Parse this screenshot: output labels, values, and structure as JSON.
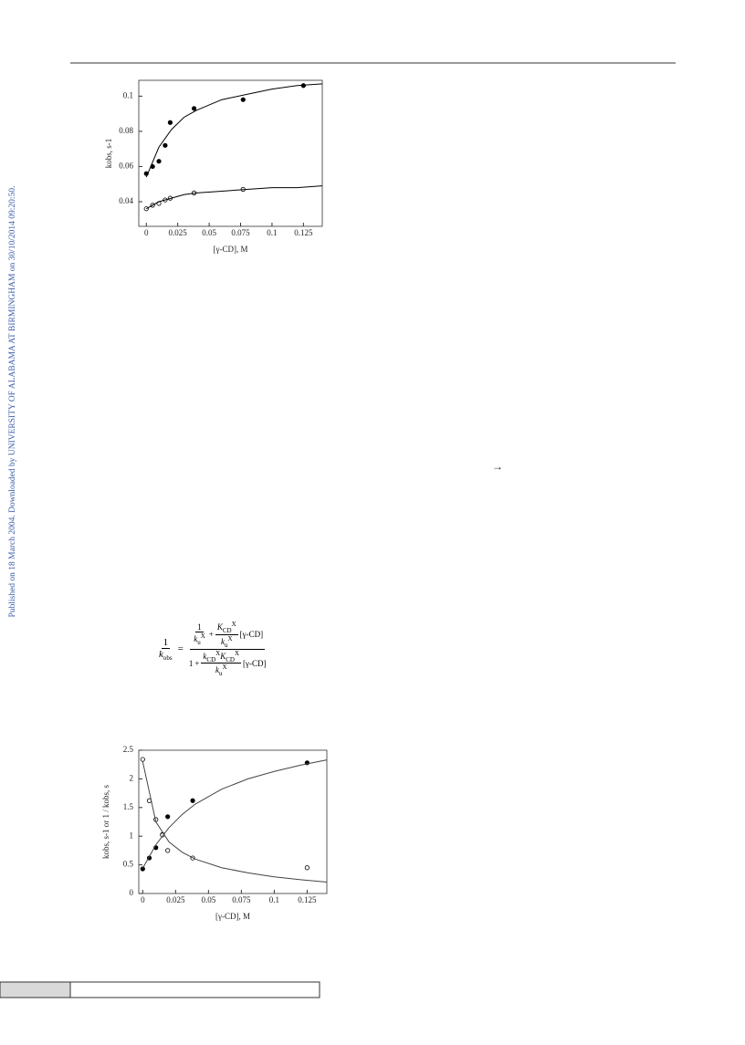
{
  "sidebar": "Published on 18 March 2004. Downloaded by UNIVERSITY OF ALABAMA AT BIRMINGHAM on 30/10/2014 09:20:50.",
  "arrow": "→",
  "equation": {
    "lhs_num": "1",
    "lhs_den": [
      "k",
      "obs"
    ],
    "equals": "=",
    "num": {
      "one": "1",
      "ku": [
        "k",
        "u",
        "X"
      ],
      "plus": "+",
      "K": [
        "K",
        "CD",
        "X"
      ],
      "ku2": [
        "k",
        "u",
        "X"
      ],
      "conc": "[γ-CD]"
    },
    "den": {
      "one": "1",
      "plus": "+",
      "k": [
        "k",
        "CD",
        "X"
      ],
      "K": [
        "K",
        "CD",
        "X"
      ],
      "ku": [
        "k",
        "u",
        "X"
      ],
      "conc": "[γ-CD]"
    }
  },
  "chart_data": [
    {
      "type": "scatter",
      "x_label": "[γ-CD], M",
      "y_label": "kobs, s-1",
      "xlim": [
        -0.006,
        0.14
      ],
      "xticks": [
        0,
        0.025,
        0.05,
        0.075,
        0.1,
        0.125
      ],
      "ylim": [
        0.026,
        0.109
      ],
      "yticks": [
        0.04,
        0.06,
        0.08,
        0.1
      ],
      "series": [
        {
          "marker": "filled",
          "color": "#000",
          "x": [
            0,
            0.005,
            0.01,
            0.015,
            0.019,
            0.038,
            0.077,
            0.125
          ],
          "values": [
            0.056,
            0.06,
            0.063,
            0.072,
            0.085,
            0.093,
            0.098,
            0.106
          ]
        },
        {
          "marker": "open",
          "color": "#000",
          "x": [
            0,
            0.005,
            0.01,
            0.015,
            0.019,
            0.038,
            0.077
          ],
          "values": [
            0.036,
            0.038,
            0.039,
            0.041,
            0.042,
            0.045,
            0.047
          ]
        },
        {
          "marker": "line",
          "color": "#000",
          "x": [
            0,
            0.01,
            0.02,
            0.03,
            0.04,
            0.06,
            0.08,
            0.1,
            0.12,
            0.14
          ],
          "values": [
            0.054,
            0.071,
            0.081,
            0.088,
            0.092,
            0.098,
            0.101,
            0.104,
            0.106,
            0.107
          ]
        },
        {
          "marker": "line",
          "color": "#000",
          "x": [
            0,
            0.01,
            0.02,
            0.03,
            0.04,
            0.06,
            0.08,
            0.1,
            0.12,
            0.14
          ],
          "values": [
            0.036,
            0.04,
            0.042,
            0.044,
            0.045,
            0.046,
            0.047,
            0.048,
            0.048,
            0.049
          ]
        }
      ]
    },
    {
      "type": "scatter",
      "x_label": "[γ-CD], M",
      "y_label": "kobs, s-1 or 1 / kobs, s",
      "xlim": [
        -0.003,
        0.14
      ],
      "xticks": [
        0,
        0.025,
        0.05,
        0.075,
        0.1,
        0.125
      ],
      "ylim": [
        0,
        2.5
      ],
      "yticks": [
        0,
        0.5,
        1,
        1.5,
        2,
        2.5
      ],
      "series": [
        {
          "marker": "filled",
          "color": "#000",
          "x": [
            0,
            0.005,
            0.01,
            0.015,
            0.019,
            0.038,
            0.125
          ],
          "values": [
            0.43,
            0.62,
            0.8,
            1.03,
            1.34,
            1.62,
            2.28
          ]
        },
        {
          "marker": "open",
          "color": "#000",
          "x": [
            0,
            0.005,
            0.01,
            0.015,
            0.019,
            0.038,
            0.125
          ],
          "values": [
            2.34,
            1.62,
            1.29,
            1.02,
            0.75,
            0.62,
            0.45
          ]
        },
        {
          "marker": "line",
          "color": "#444",
          "x": [
            0,
            0.01,
            0.02,
            0.03,
            0.04,
            0.06,
            0.08,
            0.1,
            0.12,
            0.14
          ],
          "values": [
            0.44,
            0.85,
            1.15,
            1.38,
            1.56,
            1.82,
            2.0,
            2.13,
            2.24,
            2.33
          ]
        },
        {
          "marker": "line",
          "color": "#444",
          "x": [
            0,
            0.01,
            0.02,
            0.03,
            0.04,
            0.06,
            0.08,
            0.1,
            0.12,
            0.14
          ],
          "values": [
            2.3,
            1.25,
            0.9,
            0.72,
            0.6,
            0.45,
            0.36,
            0.29,
            0.24,
            0.2
          ]
        }
      ]
    }
  ]
}
